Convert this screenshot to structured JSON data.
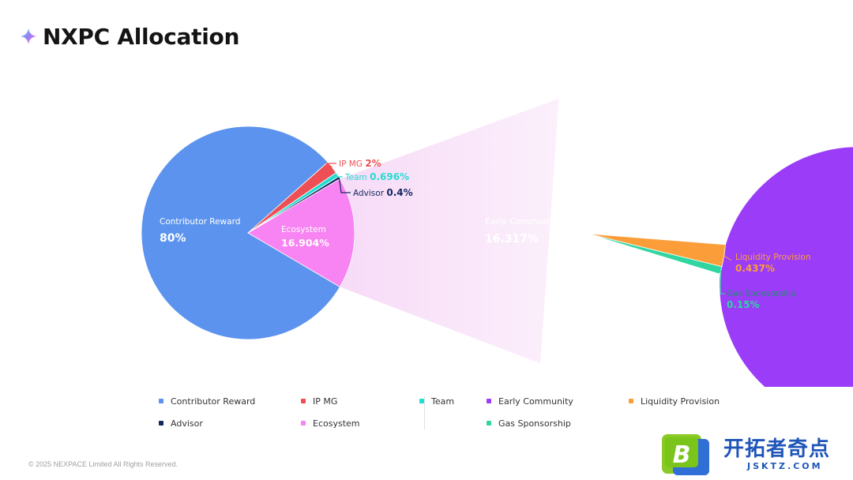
{
  "title": "NXPC Allocation",
  "footer": "© 2025 NEXPACE Limited All Rights Reserved.",
  "watermark": {
    "cn": "开拓者奇点",
    "en": "JSKTZ.COM",
    "logo_letter": "B"
  },
  "chart_data": [
    {
      "type": "pie",
      "slices": [
        {
          "name": "Contributor Reward",
          "value": 80,
          "label": "80%",
          "color": "#5b93ee"
        },
        {
          "name": "IP MG",
          "value": 2,
          "label": "2%",
          "color": "#ee4f54"
        },
        {
          "name": "Team",
          "value": 0.696,
          "label": "0.696%",
          "color": "#22ddd2"
        },
        {
          "name": "Advisor",
          "value": 0.4,
          "label": "0.4%",
          "color": "#14275e"
        },
        {
          "name": "Ecosystem",
          "value": 16.904,
          "label": "16.904%",
          "color": "#f883f2"
        }
      ],
      "legend_position": "bottom"
    },
    {
      "type": "pie",
      "slices": [
        {
          "name": "Early Community",
          "value": 16.317,
          "label": "16.317%",
          "color": "#9b3cf8"
        },
        {
          "name": "Liquidity Provision",
          "value": 0.437,
          "label": "0.437%",
          "color": "#fb9e3a"
        },
        {
          "name": "Gas Sponsorship",
          "value": 0.15,
          "label": "0.15%",
          "color": "#2fd6a2"
        }
      ],
      "legend_position": "bottom"
    }
  ],
  "legend_left": [
    {
      "name": "Contributor Reward",
      "color": "#5b93ee"
    },
    {
      "name": "IP MG",
      "color": "#ee4f54"
    },
    {
      "name": "Team",
      "color": "#22ddd2"
    },
    {
      "name": "Advisor",
      "color": "#14275e"
    },
    {
      "name": "Ecosystem",
      "color": "#f883f2"
    }
  ],
  "legend_right": [
    {
      "name": "Early Community",
      "color": "#9b3cf8"
    },
    {
      "name": "Liquidity Provision",
      "color": "#fb9e3a"
    },
    {
      "name": "Gas Sponsorship",
      "color": "#2fd6a2"
    }
  ]
}
